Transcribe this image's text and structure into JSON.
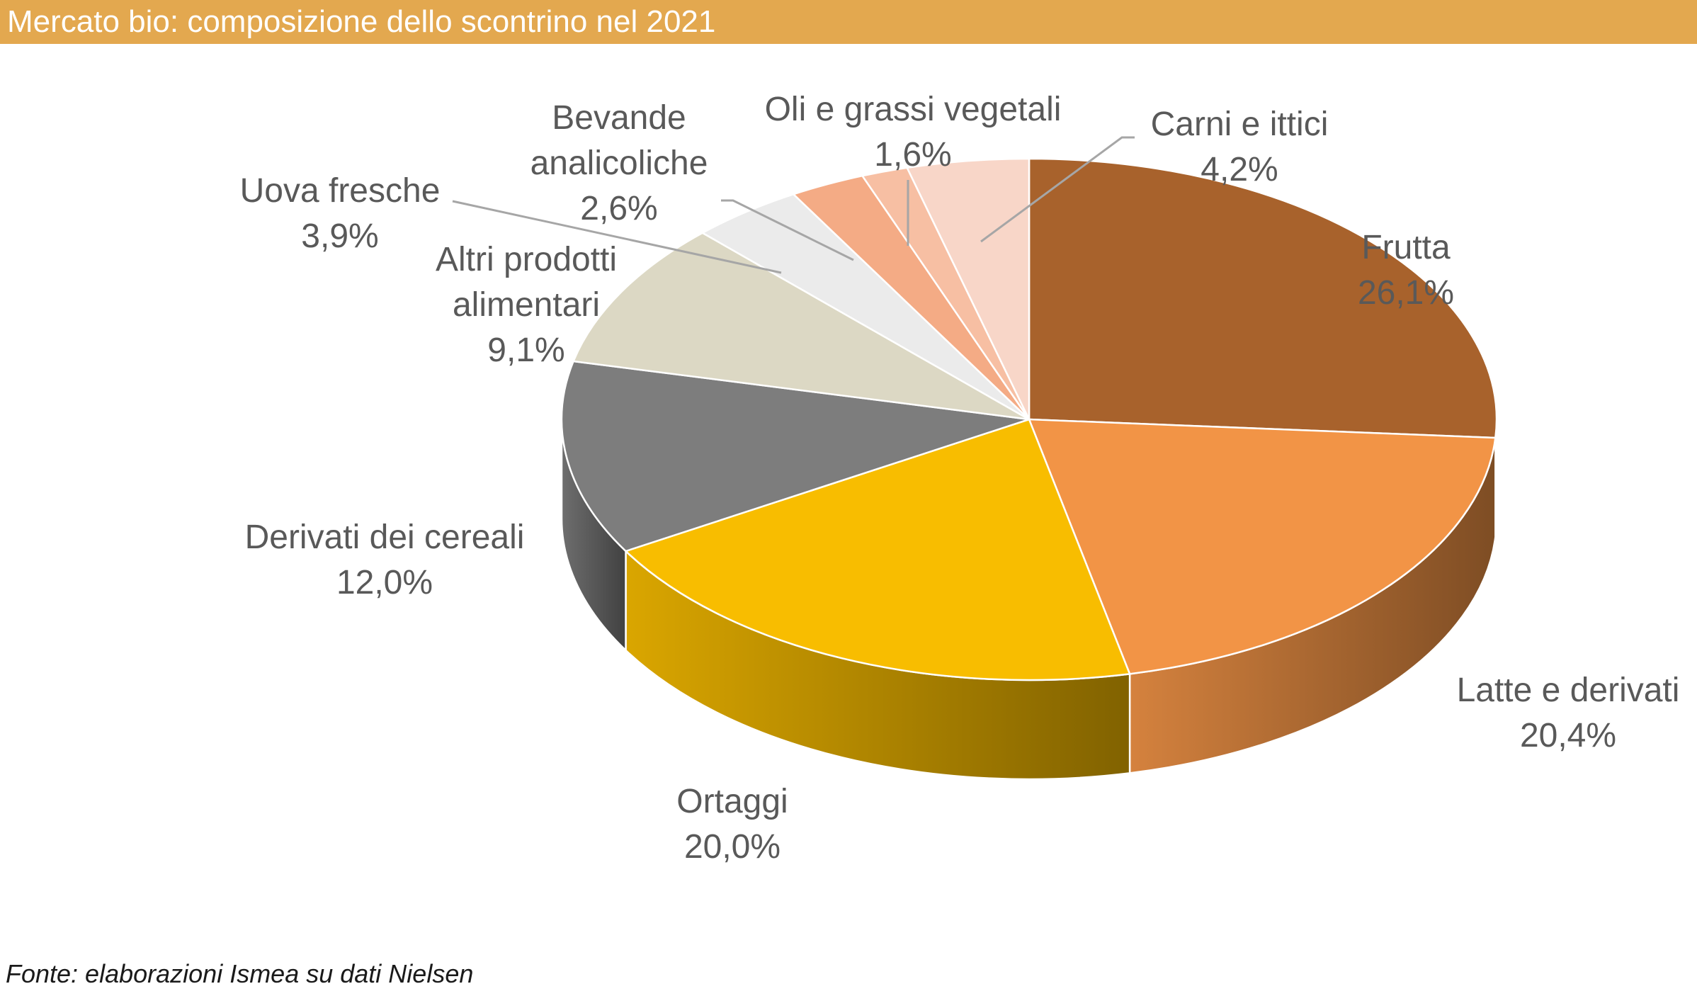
{
  "chart_data": {
    "type": "pie",
    "title": "Mercato bio: composizione dello scontrino nel 2021",
    "source": "Fonte: elaborazioni Ismea su dati Nielsen",
    "slices": [
      {
        "name": "Frutta",
        "value": 26.1,
        "value_label": "26,1%",
        "color": "#a8622c"
      },
      {
        "name": "Latte e derivati",
        "value": 20.4,
        "value_label": "20,4%",
        "color": "#f29446"
      },
      {
        "name": "Ortaggi",
        "value": 20.0,
        "value_label": "20,0%",
        "color": "#f8bd00"
      },
      {
        "name": "Derivati dei cereali",
        "value": 12.0,
        "value_label": "12,0%",
        "color": "#7d7d7d"
      },
      {
        "name": "Altri prodotti alimentari",
        "value": 9.1,
        "value_label": "9,1%",
        "color": "#dcd8c4"
      },
      {
        "name": "Uova fresche",
        "value": 3.9,
        "value_label": "3,9%",
        "color": "#ebebeb"
      },
      {
        "name": "Bevande analicoliche",
        "value": 2.6,
        "value_label": "2,6%",
        "color": "#f4ab85"
      },
      {
        "name": "Oli e grassi vegetali",
        "value": 1.6,
        "value_label": "1,6%",
        "color": "#f7bfa3"
      },
      {
        "name": "Carni e ittici",
        "value": 4.2,
        "value_label": "4,2%",
        "color": "#f8d6c8"
      }
    ]
  }
}
